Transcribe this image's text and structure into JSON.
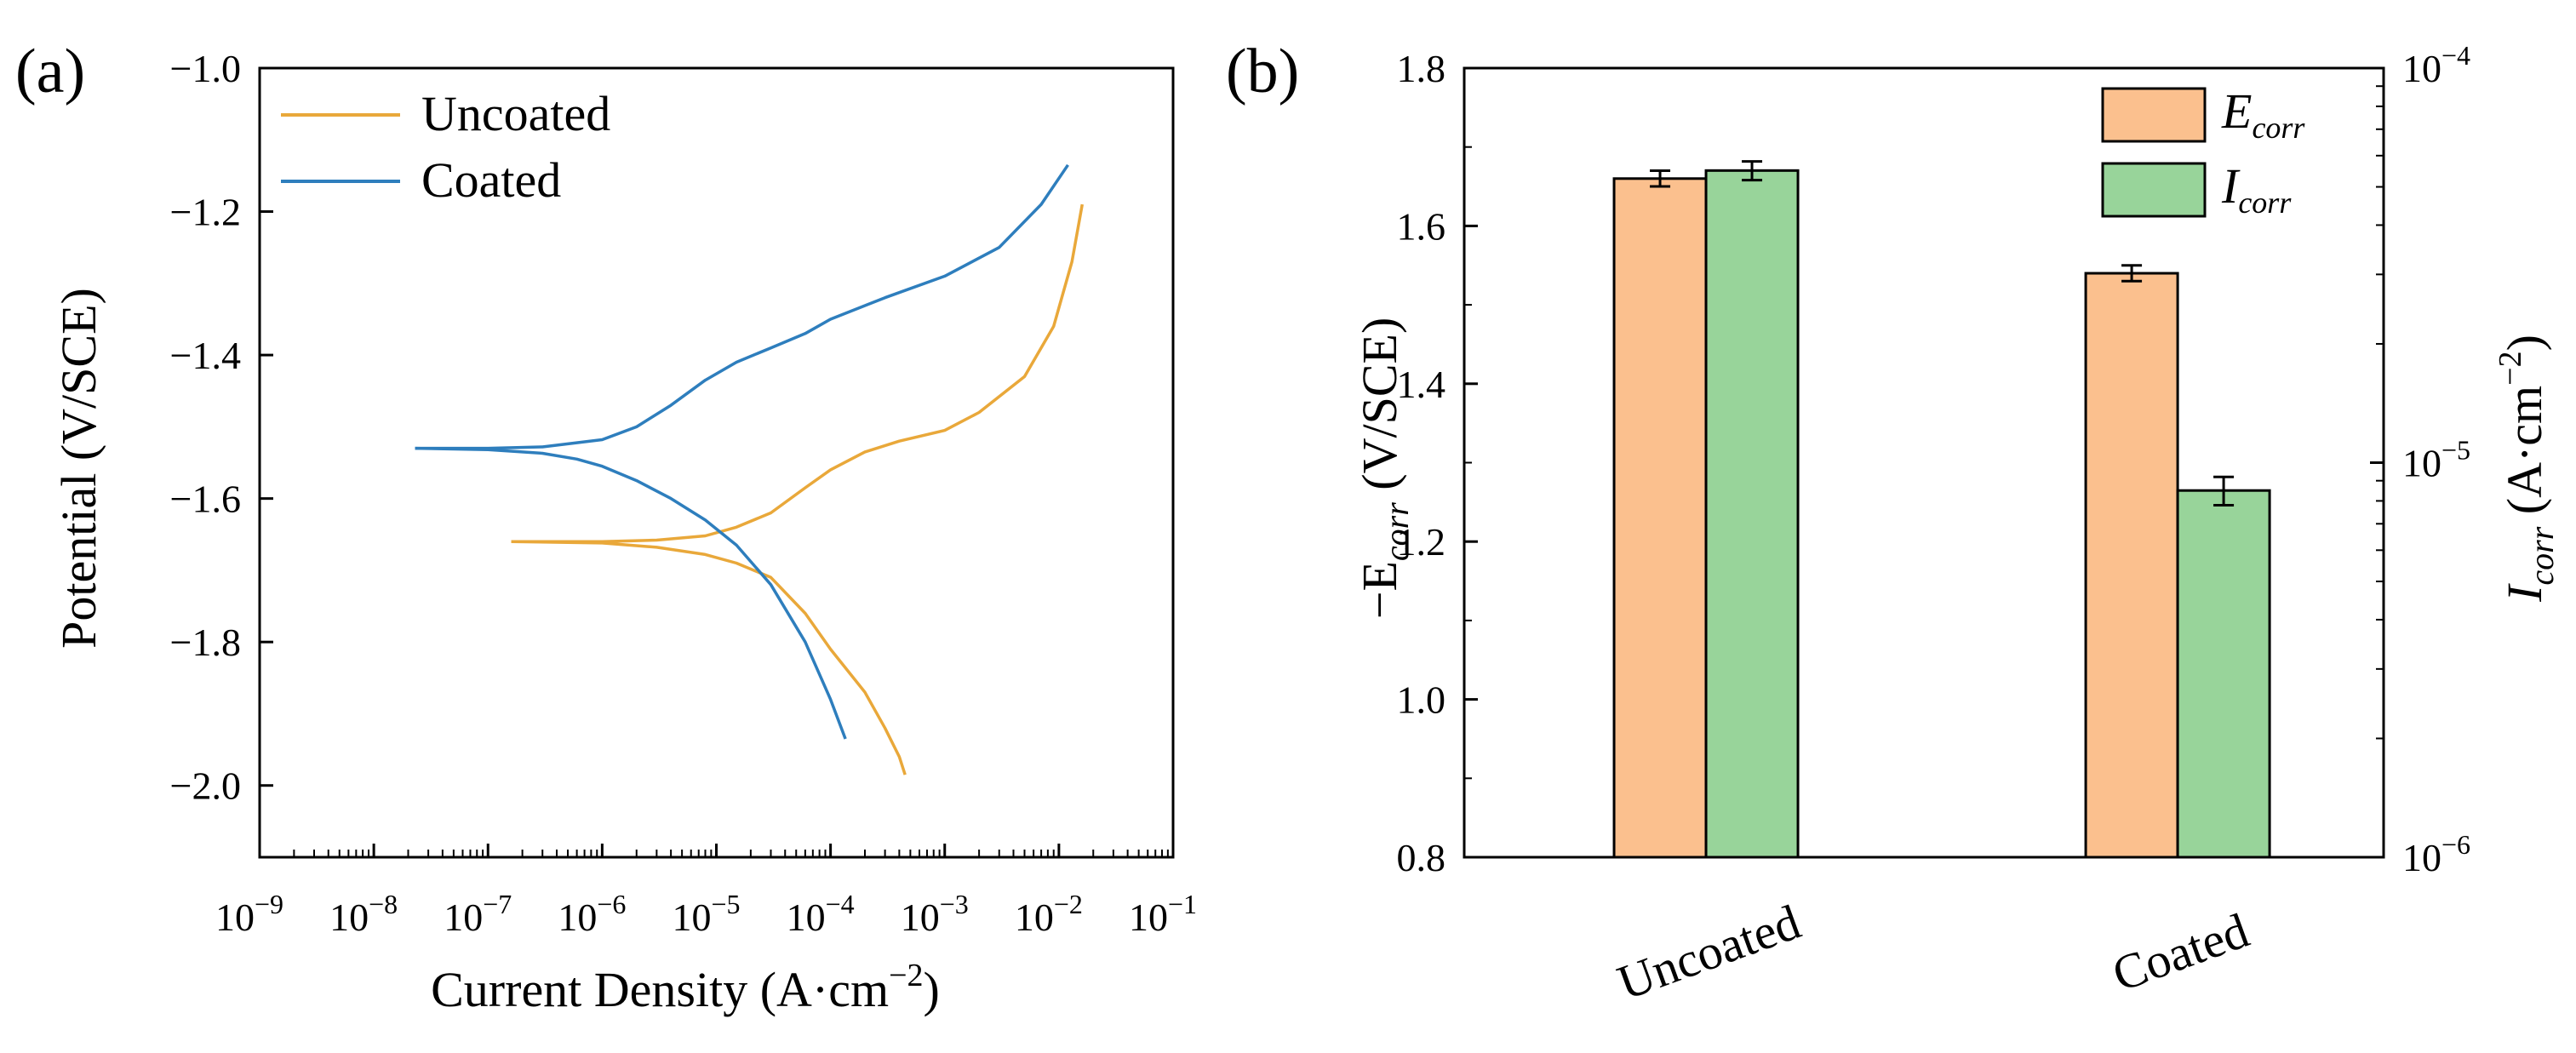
{
  "panel_a": {
    "panel_label": "(a)",
    "xlabel_text": "Current Density (A·cm",
    "xlabel_exp": "−2",
    "xlabel_close": ")",
    "ylabel": "Potential (V/SCE)"
  },
  "panel_b": {
    "panel_label": "(b)",
    "ylabel_left_prefix": "−E",
    "ylabel_left_sub": "corr",
    "ylabel_left_suffix": " (V/SCE)",
    "ylabel_right_main": "I",
    "ylabel_right_sub": "corr",
    "ylabel_right_suffix": " (A·cm",
    "ylabel_right_exp": "−2",
    "ylabel_right_close": ")"
  },
  "chart_data": [
    {
      "type": "line",
      "panel": "a",
      "xscale": "log",
      "xlim": [
        1e-09,
        0.1
      ],
      "ylim": [
        -2.1,
        -1.0
      ],
      "xticks": [
        {
          "base": "10",
          "exp": "−9"
        },
        {
          "base": "10",
          "exp": "−8"
        },
        {
          "base": "10",
          "exp": "−7"
        },
        {
          "base": "10",
          "exp": "−6"
        },
        {
          "base": "10",
          "exp": "−5"
        },
        {
          "base": "10",
          "exp": "−4"
        },
        {
          "base": "10",
          "exp": "−3"
        },
        {
          "base": "10",
          "exp": "−2"
        },
        {
          "base": "10",
          "exp": "−1"
        }
      ],
      "yticks": [
        "−2.0",
        "−1.8",
        "−1.6",
        "−1.4",
        "−1.2",
        "−1.0"
      ],
      "ytick_values": [
        -2.0,
        -1.8,
        -1.6,
        -1.4,
        -1.2,
        -1.0
      ],
      "legend_position": "top-left",
      "series": [
        {
          "name": "Uncoated",
          "color": "#E9A83A",
          "branches": [
            {
              "x": [
                1.6e-07,
                1e-06,
                3e-06,
                8e-06,
                1.5e-05,
                3e-05,
                6e-05,
                0.0001,
                0.0002,
                0.0004,
                0.001,
                0.002,
                0.005,
                0.009,
                0.013,
                0.016
              ],
              "y": [
                -1.66,
                -1.66,
                -1.658,
                -1.652,
                -1.64,
                -1.62,
                -1.585,
                -1.56,
                -1.535,
                -1.52,
                -1.505,
                -1.48,
                -1.43,
                -1.36,
                -1.27,
                -1.19
              ]
            },
            {
              "x": [
                1.6e-07,
                1e-06,
                3e-06,
                8e-06,
                1.5e-05,
                3e-05,
                6e-05,
                0.0001,
                0.0002,
                0.0003,
                0.0004,
                0.00045
              ],
              "y": [
                -1.66,
                -1.662,
                -1.668,
                -1.678,
                -1.69,
                -1.71,
                -1.76,
                -1.81,
                -1.87,
                -1.92,
                -1.96,
                -1.985
              ]
            }
          ]
        },
        {
          "name": "Coated",
          "color": "#2E7EBD",
          "branches": [
            {
              "x": [
                2.3e-08,
                1e-07,
                3e-07,
                1e-06,
                2e-06,
                4e-06,
                8e-06,
                1.5e-05,
                3e-05,
                6e-05,
                0.0001,
                0.0003,
                0.001,
                0.003,
                0.007,
                0.012
              ],
              "y": [
                -1.53,
                -1.53,
                -1.528,
                -1.518,
                -1.5,
                -1.47,
                -1.435,
                -1.41,
                -1.39,
                -1.37,
                -1.35,
                -1.32,
                -1.29,
                -1.25,
                -1.19,
                -1.135
              ]
            },
            {
              "x": [
                2.3e-08,
                1e-07,
                3e-07,
                6e-07,
                1e-06,
                2e-06,
                4e-06,
                8e-06,
                1.5e-05,
                3e-05,
                6e-05,
                0.0001,
                0.000135
              ],
              "y": [
                -1.53,
                -1.532,
                -1.537,
                -1.545,
                -1.555,
                -1.575,
                -1.6,
                -1.63,
                -1.665,
                -1.72,
                -1.8,
                -1.88,
                -1.935
              ]
            }
          ]
        }
      ]
    },
    {
      "type": "bar",
      "panel": "b",
      "categories": [
        "Uncoated",
        "Coated"
      ],
      "y_left": {
        "lim": [
          0.8,
          1.8
        ],
        "ticks": [
          "0.8",
          "1.0",
          "1.2",
          "1.4",
          "1.6",
          "1.8"
        ],
        "tick_values": [
          0.8,
          1.0,
          1.2,
          1.4,
          1.6,
          1.8
        ]
      },
      "y_right": {
        "scale": "log",
        "lim": [
          1e-06,
          0.0001
        ],
        "ticks": [
          {
            "base": "10",
            "exp": "−6"
          },
          {
            "base": "10",
            "exp": "−5"
          },
          {
            "base": "10",
            "exp": "−4"
          }
        ],
        "tick_values": [
          1e-06,
          1e-05,
          0.0001
        ]
      },
      "legend_position": "top-right",
      "series": [
        {
          "name_main": "E",
          "name_sub": "corr",
          "axis": "left",
          "color": "#FBC08E",
          "values": [
            1.66,
            1.54
          ],
          "errors": [
            0.01,
            0.01
          ]
        },
        {
          "name_main": "I",
          "name_sub": "corr",
          "axis": "right",
          "color": "#98D49A",
          "values": [
            5.5e-05,
            8.5e-06
          ],
          "errors_low": [
            5.2e-05,
            7.8e-06
          ],
          "errors_high": [
            5.8e-05,
            9.2e-06
          ]
        }
      ]
    }
  ]
}
